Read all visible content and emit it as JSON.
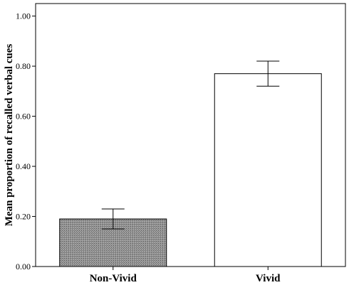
{
  "chart_data": {
    "type": "bar",
    "title": "",
    "xlabel": "",
    "ylabel": "Mean proportion of recalled verbal cues",
    "categories": [
      "Non-Vivid",
      "Vivid"
    ],
    "values": [
      0.19,
      0.77
    ],
    "error_low": [
      0.15,
      0.72
    ],
    "error_high": [
      0.23,
      0.82
    ],
    "ylim": [
      0.0,
      1.05
    ],
    "yticks": [
      0.0,
      0.2,
      0.4,
      0.6,
      0.8,
      1.0
    ],
    "ytick_labels": [
      "0.00",
      "0.20",
      "0.40",
      "0.60",
      "0.80",
      "1.00"
    ],
    "bar_colors": [
      "#8c8c8c",
      "#ffffff"
    ],
    "bar_patterns": [
      "stippled",
      "none"
    ],
    "grid": false,
    "legend": "none"
  }
}
